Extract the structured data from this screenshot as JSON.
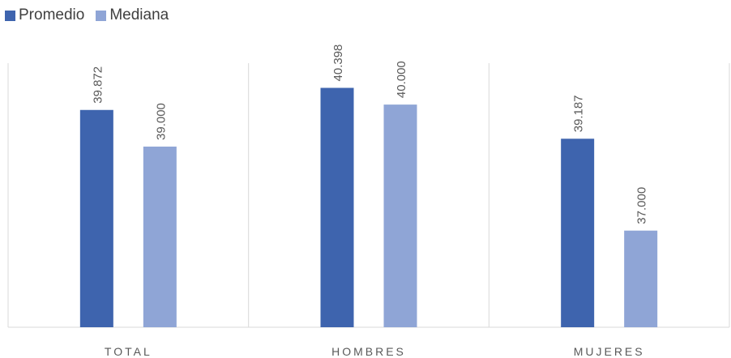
{
  "chart_data": {
    "type": "bar",
    "categories": [
      "TOTAL",
      "HOMBRES",
      "MUJERES"
    ],
    "series": [
      {
        "name": "Promedio",
        "values": [
          39.872,
          40.398,
          39.187
        ],
        "labels": [
          "39.872",
          "40.398",
          "39.187"
        ]
      },
      {
        "name": "Mediana",
        "values": [
          39.0,
          40.0,
          37.0
        ],
        "labels": [
          "39.000",
          "40.000",
          "37.000"
        ]
      }
    ],
    "ylim": [
      34.7,
      40.6
    ],
    "grid": false,
    "legend_position": "top-left",
    "title": "",
    "xlabel": "",
    "ylabel": ""
  },
  "colors": {
    "series": [
      "#3E64AE",
      "#8FA5D6"
    ],
    "axis": "#D9D9D9",
    "text": "#595959"
  }
}
